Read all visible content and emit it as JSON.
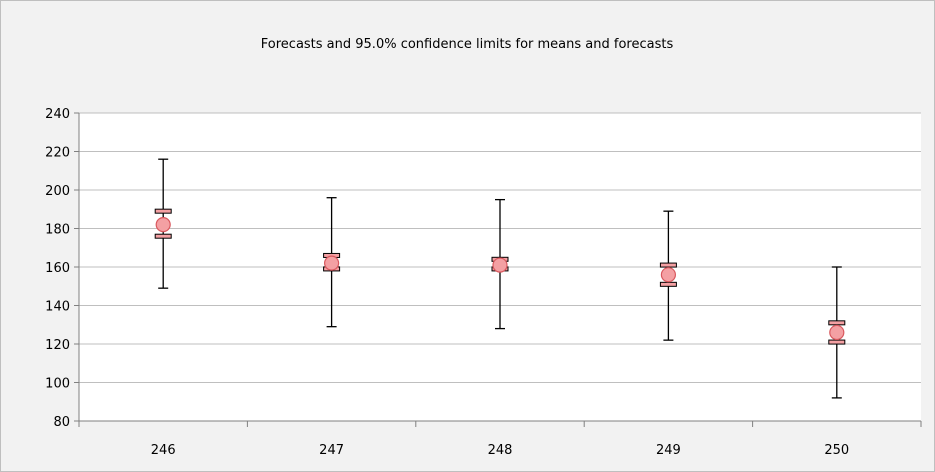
{
  "chart_data": {
    "type": "error-bar",
    "title": "Forecasts and 95.0% confidence limits for means and forecasts",
    "xlabel": "",
    "ylabel": "",
    "categories": [
      "246",
      "247",
      "248",
      "249",
      "250"
    ],
    "ylim": [
      80,
      240
    ],
    "yticks": [
      "80",
      "100",
      "120",
      "140",
      "160",
      "180",
      "200",
      "220",
      "240"
    ],
    "grid": true,
    "legend": "none",
    "series": [
      {
        "forecast": [
          182,
          162,
          161,
          156,
          126
        ],
        "mean_ci_lower": [
          176,
          159,
          159,
          151,
          121
        ],
        "mean_ci_upper": [
          189,
          166,
          164,
          161,
          131
        ],
        "forecast_ci_lower": [
          149,
          129,
          128,
          122,
          92
        ],
        "forecast_ci_upper": [
          216,
          196,
          195,
          189,
          160
        ]
      }
    ],
    "colors": {
      "point_fill": "#f4a0a3",
      "point_stroke": "#d9585e",
      "whisker": "#000000",
      "grid": "#bfbfbf",
      "plot_background": "#ffffff",
      "chart_background": "#f2f2f2"
    }
  }
}
